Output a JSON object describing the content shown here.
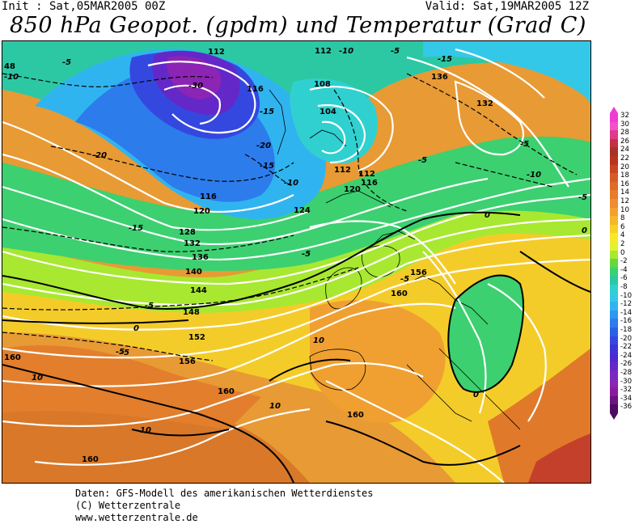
{
  "header": {
    "init": "Init : Sat,05MAR2005 00Z",
    "valid": "Valid: Sat,19MAR2005 12Z",
    "title": "850 hPa Geopot. (gpdm) und Temperatur (Grad C)"
  },
  "legend": {
    "values": [
      "32",
      "30",
      "28",
      "26",
      "24",
      "22",
      "20",
      "18",
      "16",
      "14",
      "12",
      "10",
      "8",
      "6",
      "4",
      "2",
      "0",
      "-2",
      "-4",
      "-6",
      "-8",
      "-10",
      "-12",
      "-14",
      "-16",
      "-18",
      "-20",
      "-22",
      "-24",
      "-26",
      "-28",
      "-30",
      "-32",
      "-34",
      "-36"
    ],
    "colors": [
      "#f03cd2",
      "#f550c8",
      "#e03a8c",
      "#c4304a",
      "#a83228",
      "#b8341e",
      "#cc4420",
      "#d85a28",
      "#e06a28",
      "#e87c2a",
      "#ee8e30",
      "#f4a030",
      "#f4b828",
      "#f8d020",
      "#f8e828",
      "#e6f030",
      "#a8e830",
      "#64d83c",
      "#3cd070",
      "#2cc8a4",
      "#30d0d0",
      "#34c8e8",
      "#30b4f0",
      "#2c98f0",
      "#2c7cec",
      "#2c60e4",
      "#3448e0",
      "#3c34d8",
      "#4c28d0",
      "#6428c8",
      "#7c28c0",
      "#8c24b4",
      "#8c1c9c",
      "#6c1480",
      "#4c0c60"
    ]
  },
  "map": {
    "geopotential_labels": [
      "112",
      "112",
      "116",
      "108",
      "104",
      "112",
      "112",
      "116",
      "120",
      "124",
      "116",
      "120",
      "128",
      "132",
      "136",
      "140",
      "144",
      "148",
      "152",
      "156",
      "160",
      "156",
      "160",
      "160",
      "160",
      "132",
      "136"
    ],
    "temperature_labels": [
      "-30",
      "-15",
      "-20",
      "-20",
      "-15",
      "-10",
      "-10",
      "-5",
      "-5",
      "-15",
      "-15",
      "-10",
      "-5",
      "-5",
      "-5",
      "-5",
      "0",
      "0",
      "-5",
      "-5",
      "0",
      "-5",
      "-10",
      "10",
      "10",
      "10",
      "10",
      "10",
      "0",
      "-10",
      "-5"
    ],
    "edge_labels": [
      "48",
      "-10"
    ]
  },
  "credits": {
    "line1": "Daten: GFS-Modell des amerikanischen Wetterdienstes",
    "line2": "(C) Wetterzentrale",
    "line3": "www.wetterzentrale.de"
  }
}
